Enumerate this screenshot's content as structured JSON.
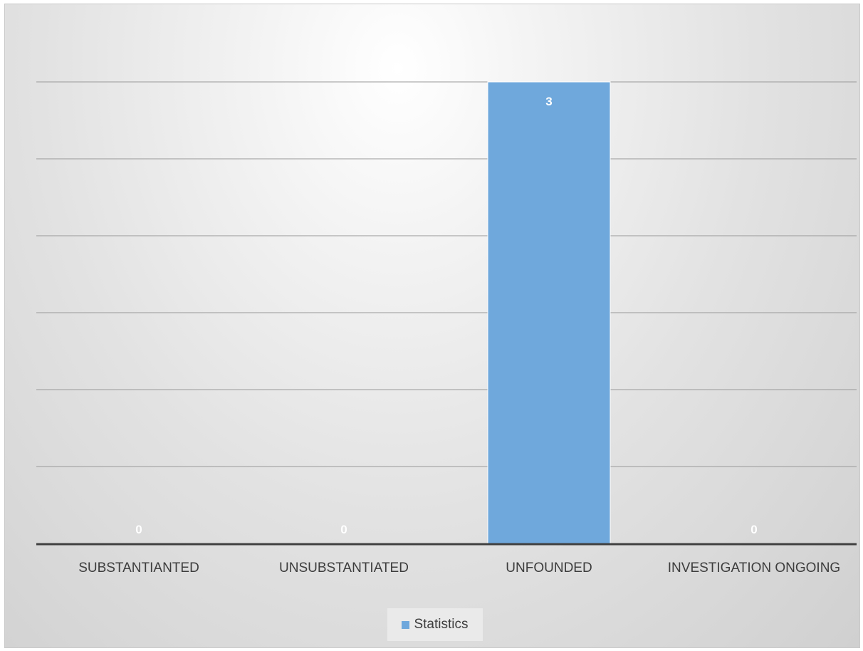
{
  "chart_data": {
    "type": "bar",
    "categories": [
      "SUBSTANTIANTED",
      "UNSUBSTANTIATED",
      "UNFOUNDED",
      "INVESTIGATION ONGOING"
    ],
    "series": [
      {
        "name": "Statistics",
        "values": [
          0,
          0,
          3,
          0
        ],
        "color": "#6fa8dc"
      }
    ],
    "data_labels": [
      "0",
      "0",
      "3",
      "0"
    ],
    "ylim": [
      0,
      3.5
    ],
    "gridlines": true,
    "axis_labels_visible": false,
    "legend_position": "bottom",
    "colors": {
      "bar": "#6fa8dc",
      "grid": "#999999",
      "axis": "#404040",
      "data_label": "#ffffff"
    }
  }
}
